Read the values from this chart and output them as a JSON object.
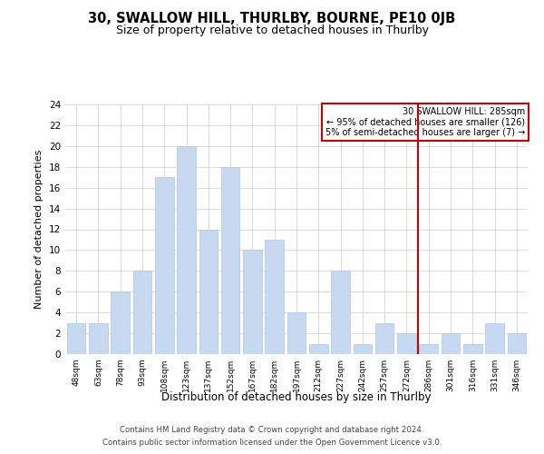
{
  "title": "30, SWALLOW HILL, THURLBY, BOURNE, PE10 0JB",
  "subtitle": "Size of property relative to detached houses in Thurlby",
  "xlabel": "Distribution of detached houses by size in Thurlby",
  "ylabel": "Number of detached properties",
  "bar_labels": [
    "48sqm",
    "63sqm",
    "78sqm",
    "93sqm",
    "108sqm",
    "123sqm",
    "137sqm",
    "152sqm",
    "167sqm",
    "182sqm",
    "197sqm",
    "212sqm",
    "227sqm",
    "242sqm",
    "257sqm",
    "272sqm",
    "286sqm",
    "301sqm",
    "316sqm",
    "331sqm",
    "346sqm"
  ],
  "bar_values": [
    3,
    3,
    6,
    8,
    17,
    20,
    12,
    18,
    10,
    11,
    4,
    1,
    8,
    1,
    3,
    2,
    1,
    2,
    1,
    3,
    2
  ],
  "bar_color": "#c6d9f0",
  "bar_edge_color": "#afc4e0",
  "grid_color": "#cccccc",
  "vline_x_index": 16,
  "vline_color": "#cc0000",
  "annotation_line1": "30 SWALLOW HILL: 285sqm",
  "annotation_line2": "← 95% of detached houses are smaller (126)",
  "annotation_line3": "5% of semi-detached houses are larger (7) →",
  "annotation_box_color": "#cc0000",
  "annotation_bg_color": "#ffffff",
  "ylim": [
    0,
    24
  ],
  "yticks": [
    0,
    2,
    4,
    6,
    8,
    10,
    12,
    14,
    16,
    18,
    20,
    22,
    24
  ],
  "footer_line1": "Contains HM Land Registry data © Crown copyright and database right 2024.",
  "footer_line2": "Contains public sector information licensed under the Open Government Licence v3.0.",
  "bg_color": "#ffffff",
  "title_fontsize": 10.5,
  "subtitle_fontsize": 9
}
